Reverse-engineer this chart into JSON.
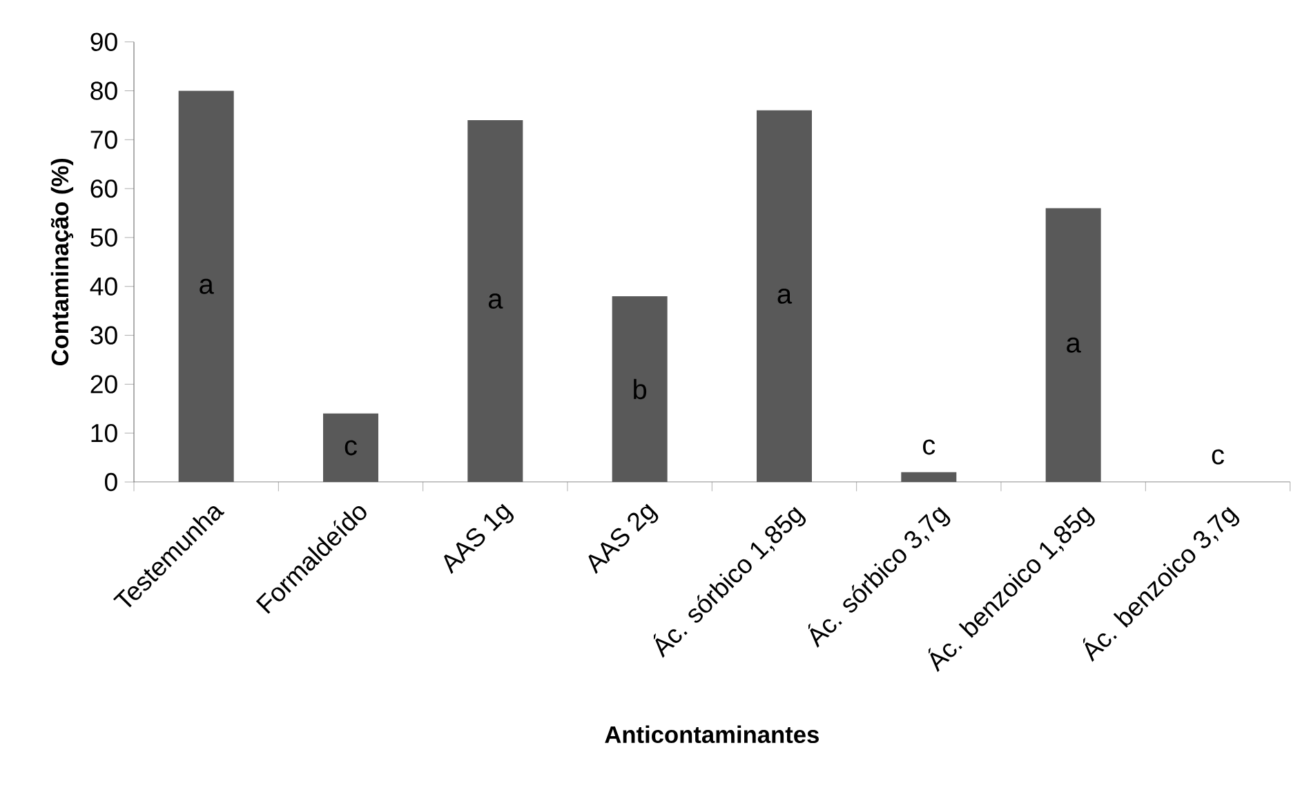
{
  "chart_data": {
    "type": "bar",
    "xlabel": "Anticontaminantes",
    "ylabel": "Contaminação (%)",
    "categories": [
      "Testemunha",
      "Formaldeído",
      "AAS 1g",
      "AAS 2g",
      "Ác. sórbico 1,85g",
      "Ác. sórbico 3,7g",
      "Ác.  benzoico 1,85g",
      "Ác. benzoico 3,7g"
    ],
    "values": [
      80,
      14,
      74,
      38,
      76,
      2,
      56,
      0
    ],
    "color": "#595959",
    "ylim": [
      0,
      90
    ],
    "yticks": [
      0,
      10,
      20,
      30,
      40,
      50,
      60,
      70,
      80,
      90
    ],
    "grid": false,
    "annotations": [
      "a",
      "c",
      "a",
      "b",
      "a",
      "c",
      "a",
      "c"
    ]
  }
}
